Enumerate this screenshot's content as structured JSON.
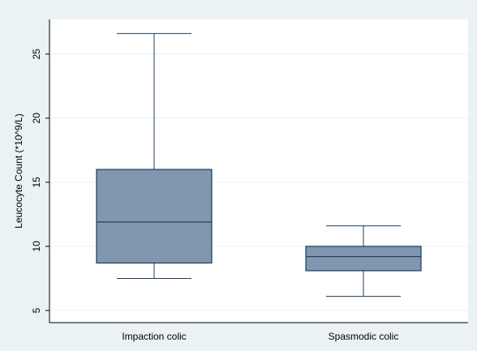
{
  "chart_data": {
    "type": "box",
    "title": "",
    "xlabel": "",
    "ylabel": "Leucocyte Count (*10^9/L)",
    "categories": [
      "Impaction colic",
      "Spasmodic colic"
    ],
    "boxes": [
      {
        "category": "Impaction colic",
        "min": 7.5,
        "q1": 8.7,
        "median": 11.9,
        "q3": 16.0,
        "max": 26.6
      },
      {
        "category": "Spasmodic colic",
        "min": 6.1,
        "q1": 8.1,
        "median": 9.2,
        "q3": 10.0,
        "max": 11.6
      }
    ],
    "y_ticks": [
      5,
      10,
      15,
      20,
      25
    ],
    "ylim": [
      4.05,
      27.7
    ],
    "grid": true,
    "colors": {
      "background": "#eaf2f3",
      "plot_area": "#ffffff",
      "box_fill": "#8197b0",
      "box_stroke": "#1c3e5c",
      "grid": "#eaf2f3"
    }
  }
}
